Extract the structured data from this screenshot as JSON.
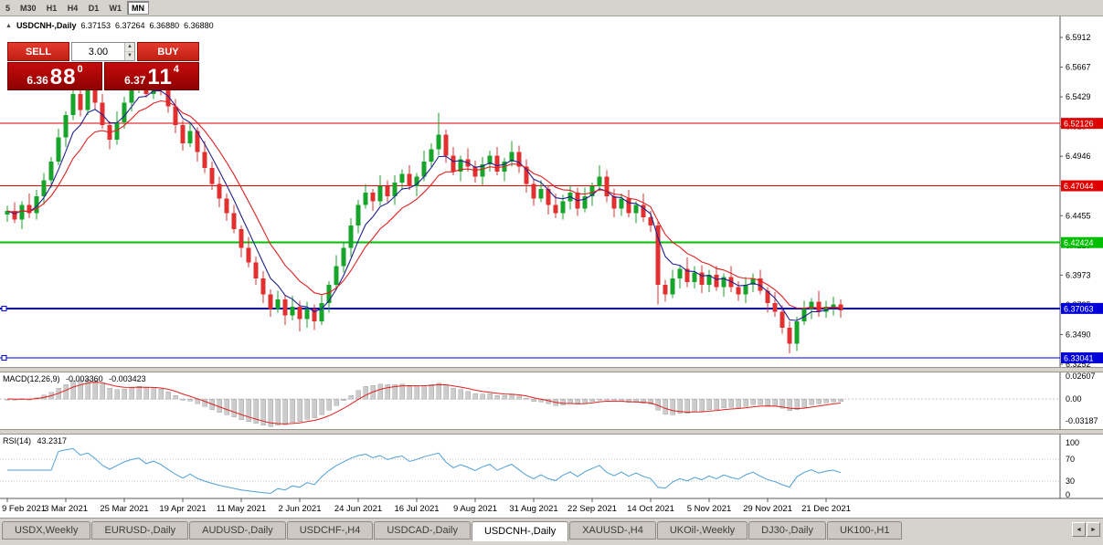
{
  "toolbar": {
    "timeframes": [
      "5",
      "M30",
      "H1",
      "H4",
      "D1",
      "W1",
      "MN"
    ],
    "active_timeframe": "MN"
  },
  "icons": {
    "spin_up": "▲",
    "spin_down": "▼",
    "scroll_left": "◄",
    "scroll_right": "►"
  },
  "chart_header": {
    "collapse_icon": "▲",
    "symbol_period": "USDCNH-,Daily",
    "open": "6.37153",
    "high": "6.37264",
    "low": "6.36880",
    "close": "6.36880"
  },
  "trade_panel": {
    "sell_label": "SELL",
    "buy_label": "BUY",
    "volume": "3.00",
    "sell_price_prefix": "6.36",
    "sell_price_big": "88",
    "sell_price_sup": "0",
    "buy_price_prefix": "6.37",
    "buy_price_big": "11",
    "buy_price_sup": "4"
  },
  "colors": {
    "up": "#18a32a",
    "down": "#e03030",
    "ma_fast": "#202090",
    "ma_slow": "#e02020",
    "macd_hist": "#cccccc",
    "macd_hist_border": "#a8a8a8",
    "macd_signal": "#e02020",
    "rsi": "#4f9fd8",
    "hline_red": "#e00000",
    "hline_green": "#00bf00",
    "hline_blue": "#0000d8"
  },
  "price_axis": {
    "ticks": [
      "6.5912",
      "6.5667",
      "6.5429",
      "6.5184",
      "6.4946",
      "6.4701",
      "6.4455",
      "6.4210",
      "6.3973",
      "6.3735",
      "6.3490",
      "6.3252"
    ]
  },
  "macd_panel": {
    "label": "MACD(12,26,9)",
    "value_main": "-0.003360",
    "value_signal": "-0.003423",
    "axis": [
      "0.02607",
      "0.00",
      "-0.03187"
    ]
  },
  "rsi_panel": {
    "label": "RSI(14)",
    "value": "43.2317",
    "axis": [
      "100",
      "70",
      "30",
      "0"
    ],
    "levels": [
      70,
      30
    ]
  },
  "tabs": [
    "USDX,Weekly",
    "EURUSD-,Daily",
    "AUDUSD-,Daily",
    "USDCHF-,H4",
    "USDCAD-,Daily",
    "USDCNH-,Daily",
    "XAUUSD-,H4",
    "UKOil-,Weekly",
    "DJ30-,Daily",
    "UK100-,H1"
  ],
  "active_tab": "USDCNH-,Daily",
  "chart_data": {
    "type": "candlestick",
    "symbol": "USDCNH-",
    "timeframe": "Daily",
    "ylim": [
      6.323,
      6.5971
    ],
    "x_labels": [
      "9 Feb 2021",
      "3 Mar 2021",
      "25 Mar 2021",
      "19 Apr 2021",
      "11 May 2021",
      "2 Jun 2021",
      "24 Jun 2021",
      "16 Jul 2021",
      "9 Aug 2021",
      "31 Aug 2021",
      "22 Sep 2021",
      "14 Oct 2021",
      "5 Nov 2021",
      "29 Nov 2021",
      "21 Dec 2021"
    ],
    "hlines": [
      {
        "price": 6.52126,
        "label": "6.52126",
        "color": "#e00000",
        "width": 1,
        "handles": false
      },
      {
        "price": 6.47044,
        "label": "6.47044",
        "color": "#e00000",
        "width": 1,
        "handles": false
      },
      {
        "price": 6.42424,
        "label": "6.42424",
        "color": "#00bf00",
        "width": 2,
        "handles": false
      },
      {
        "price": 6.37063,
        "label": "6.37063",
        "color": "#0000d8",
        "width": 2,
        "handles": true
      },
      {
        "price": 6.33041,
        "label": "6.33041",
        "color": "#0000d8",
        "width": 1,
        "handles": true
      }
    ],
    "candles_ohlc": [
      [
        6.447,
        6.454,
        6.441,
        6.45
      ],
      [
        6.45,
        6.457,
        6.44,
        6.443
      ],
      [
        6.443,
        6.458,
        6.435,
        6.455
      ],
      [
        6.455,
        6.464,
        6.444,
        6.448
      ],
      [
        6.448,
        6.467,
        6.443,
        6.462
      ],
      [
        6.462,
        6.481,
        6.455,
        6.475
      ],
      [
        6.475,
        6.494,
        6.469,
        6.49
      ],
      [
        6.49,
        6.517,
        6.487,
        6.51
      ],
      [
        6.51,
        6.531,
        6.502,
        6.528
      ],
      [
        6.528,
        6.556,
        6.524,
        6.545
      ],
      [
        6.545,
        6.55,
        6.527,
        6.532
      ],
      [
        6.532,
        6.562,
        6.528,
        6.55
      ],
      [
        6.55,
        6.554,
        6.532,
        6.538
      ],
      [
        6.538,
        6.545,
        6.517,
        6.52
      ],
      [
        6.52,
        6.523,
        6.5,
        6.508
      ],
      [
        6.508,
        6.531,
        6.504,
        6.522
      ],
      [
        6.522,
        6.543,
        6.517,
        6.538
      ],
      [
        6.538,
        6.556,
        6.531,
        6.55
      ],
      [
        6.55,
        6.568,
        6.546,
        6.558
      ],
      [
        6.558,
        6.565,
        6.542,
        6.545
      ],
      [
        6.545,
        6.565,
        6.541,
        6.556
      ],
      [
        6.556,
        6.565,
        6.544,
        6.548
      ],
      [
        6.548,
        6.553,
        6.53,
        6.535
      ],
      [
        6.535,
        6.541,
        6.513,
        6.52
      ],
      [
        6.52,
        6.524,
        6.499,
        6.505
      ],
      [
        6.505,
        6.522,
        6.502,
        6.515
      ],
      [
        6.515,
        6.518,
        6.49,
        6.498
      ],
      [
        6.498,
        6.507,
        6.481,
        6.485
      ],
      [
        6.485,
        6.49,
        6.467,
        6.472
      ],
      [
        6.472,
        6.478,
        6.453,
        6.46
      ],
      [
        6.46,
        6.464,
        6.442,
        6.448
      ],
      [
        6.448,
        6.455,
        6.432,
        6.435
      ],
      [
        6.435,
        6.438,
        6.412,
        6.42
      ],
      [
        6.42,
        6.429,
        6.404,
        6.408
      ],
      [
        6.408,
        6.413,
        6.39,
        6.395
      ],
      [
        6.395,
        6.401,
        6.375,
        6.382
      ],
      [
        6.382,
        6.386,
        6.364,
        6.37
      ],
      [
        6.37,
        6.385,
        6.367,
        6.378
      ],
      [
        6.378,
        6.381,
        6.357,
        6.365
      ],
      [
        6.365,
        6.381,
        6.361,
        6.372
      ],
      [
        6.372,
        6.377,
        6.352,
        6.362
      ],
      [
        6.362,
        6.376,
        6.355,
        6.37
      ],
      [
        6.37,
        6.374,
        6.353,
        6.36
      ],
      [
        6.36,
        6.382,
        6.357,
        6.375
      ],
      [
        6.375,
        6.393,
        6.367,
        6.39
      ],
      [
        6.39,
        6.414,
        6.386,
        6.405
      ],
      [
        6.405,
        6.425,
        6.4,
        6.42
      ],
      [
        6.42,
        6.444,
        6.413,
        6.438
      ],
      [
        6.438,
        6.459,
        6.432,
        6.455
      ],
      [
        6.455,
        6.472,
        6.452,
        6.465
      ],
      [
        6.465,
        6.468,
        6.45,
        6.458
      ],
      [
        6.458,
        6.479,
        6.454,
        6.47
      ],
      [
        6.47,
        6.475,
        6.457,
        6.462
      ],
      [
        6.462,
        6.479,
        6.455,
        6.473
      ],
      [
        6.473,
        6.484,
        6.467,
        6.48
      ],
      [
        6.48,
        6.487,
        6.467,
        6.47
      ],
      [
        6.47,
        6.481,
        6.462,
        6.478
      ],
      [
        6.478,
        6.499,
        6.474,
        6.49
      ],
      [
        6.49,
        6.505,
        6.485,
        6.5
      ],
      [
        6.5,
        6.53,
        6.495,
        6.512
      ],
      [
        6.512,
        6.516,
        6.489,
        6.495
      ],
      [
        6.495,
        6.502,
        6.479,
        6.482
      ],
      [
        6.482,
        6.495,
        6.474,
        6.492
      ],
      [
        6.492,
        6.501,
        6.482,
        6.486
      ],
      [
        6.486,
        6.491,
        6.473,
        6.478
      ],
      [
        6.478,
        6.494,
        6.471,
        6.488
      ],
      [
        6.488,
        6.499,
        6.482,
        6.495
      ],
      [
        6.495,
        6.502,
        6.479,
        6.482
      ],
      [
        6.482,
        6.493,
        6.474,
        6.49
      ],
      [
        6.49,
        6.507,
        6.486,
        6.498
      ],
      [
        6.498,
        6.503,
        6.481,
        6.486
      ],
      [
        6.486,
        6.492,
        6.465,
        6.472
      ],
      [
        6.472,
        6.476,
        6.454,
        6.46
      ],
      [
        6.46,
        6.475,
        6.457,
        6.468
      ],
      [
        6.468,
        6.471,
        6.447,
        6.455
      ],
      [
        6.455,
        6.464,
        6.444,
        6.448
      ],
      [
        6.448,
        6.463,
        6.443,
        6.458
      ],
      [
        6.458,
        6.471,
        6.451,
        6.465
      ],
      [
        6.465,
        6.469,
        6.446,
        6.452
      ],
      [
        6.452,
        6.469,
        6.449,
        6.462
      ],
      [
        6.462,
        6.473,
        6.454,
        6.47
      ],
      [
        6.47,
        6.487,
        6.466,
        6.478
      ],
      [
        6.478,
        6.483,
        6.457,
        6.462
      ],
      [
        6.462,
        6.468,
        6.445,
        6.452
      ],
      [
        6.452,
        6.464,
        6.446,
        6.46
      ],
      [
        6.46,
        6.467,
        6.445,
        6.448
      ],
      [
        6.448,
        6.458,
        6.44,
        6.455
      ],
      [
        6.455,
        6.464,
        6.441,
        6.445
      ],
      [
        6.445,
        6.45,
        6.433,
        6.438
      ],
      [
        6.438,
        6.441,
        6.374,
        6.39
      ],
      [
        6.39,
        6.394,
        6.376,
        6.382
      ],
      [
        6.382,
        6.402,
        6.379,
        6.395
      ],
      [
        6.395,
        6.406,
        6.387,
        6.403
      ],
      [
        6.403,
        6.412,
        6.388,
        6.392
      ],
      [
        6.392,
        6.405,
        6.387,
        6.4
      ],
      [
        6.4,
        6.406,
        6.383,
        6.39
      ],
      [
        6.39,
        6.402,
        6.384,
        6.398
      ],
      [
        6.398,
        6.405,
        6.385,
        6.388
      ],
      [
        6.388,
        6.399,
        6.38,
        6.396
      ],
      [
        6.396,
        6.405,
        6.384,
        6.388
      ],
      [
        6.388,
        6.393,
        6.377,
        6.382
      ],
      [
        6.382,
        6.396,
        6.375,
        6.39
      ],
      [
        6.39,
        6.399,
        6.384,
        6.395
      ],
      [
        6.395,
        6.402,
        6.382,
        6.385
      ],
      [
        6.385,
        6.388,
        6.367,
        6.375
      ],
      [
        6.375,
        6.384,
        6.364,
        6.368
      ],
      [
        6.368,
        6.373,
        6.35,
        6.355
      ],
      [
        6.355,
        6.36,
        6.334,
        6.342
      ],
      [
        6.342,
        6.364,
        6.336,
        6.36
      ],
      [
        6.36,
        6.377,
        6.357,
        6.37
      ],
      [
        6.37,
        6.379,
        6.362,
        6.376
      ],
      [
        6.376,
        6.385,
        6.364,
        6.368
      ],
      [
        6.368,
        6.377,
        6.363,
        6.372
      ],
      [
        6.372,
        6.38,
        6.365,
        6.374
      ],
      [
        6.374,
        6.378,
        6.363,
        6.369
      ]
    ]
  }
}
